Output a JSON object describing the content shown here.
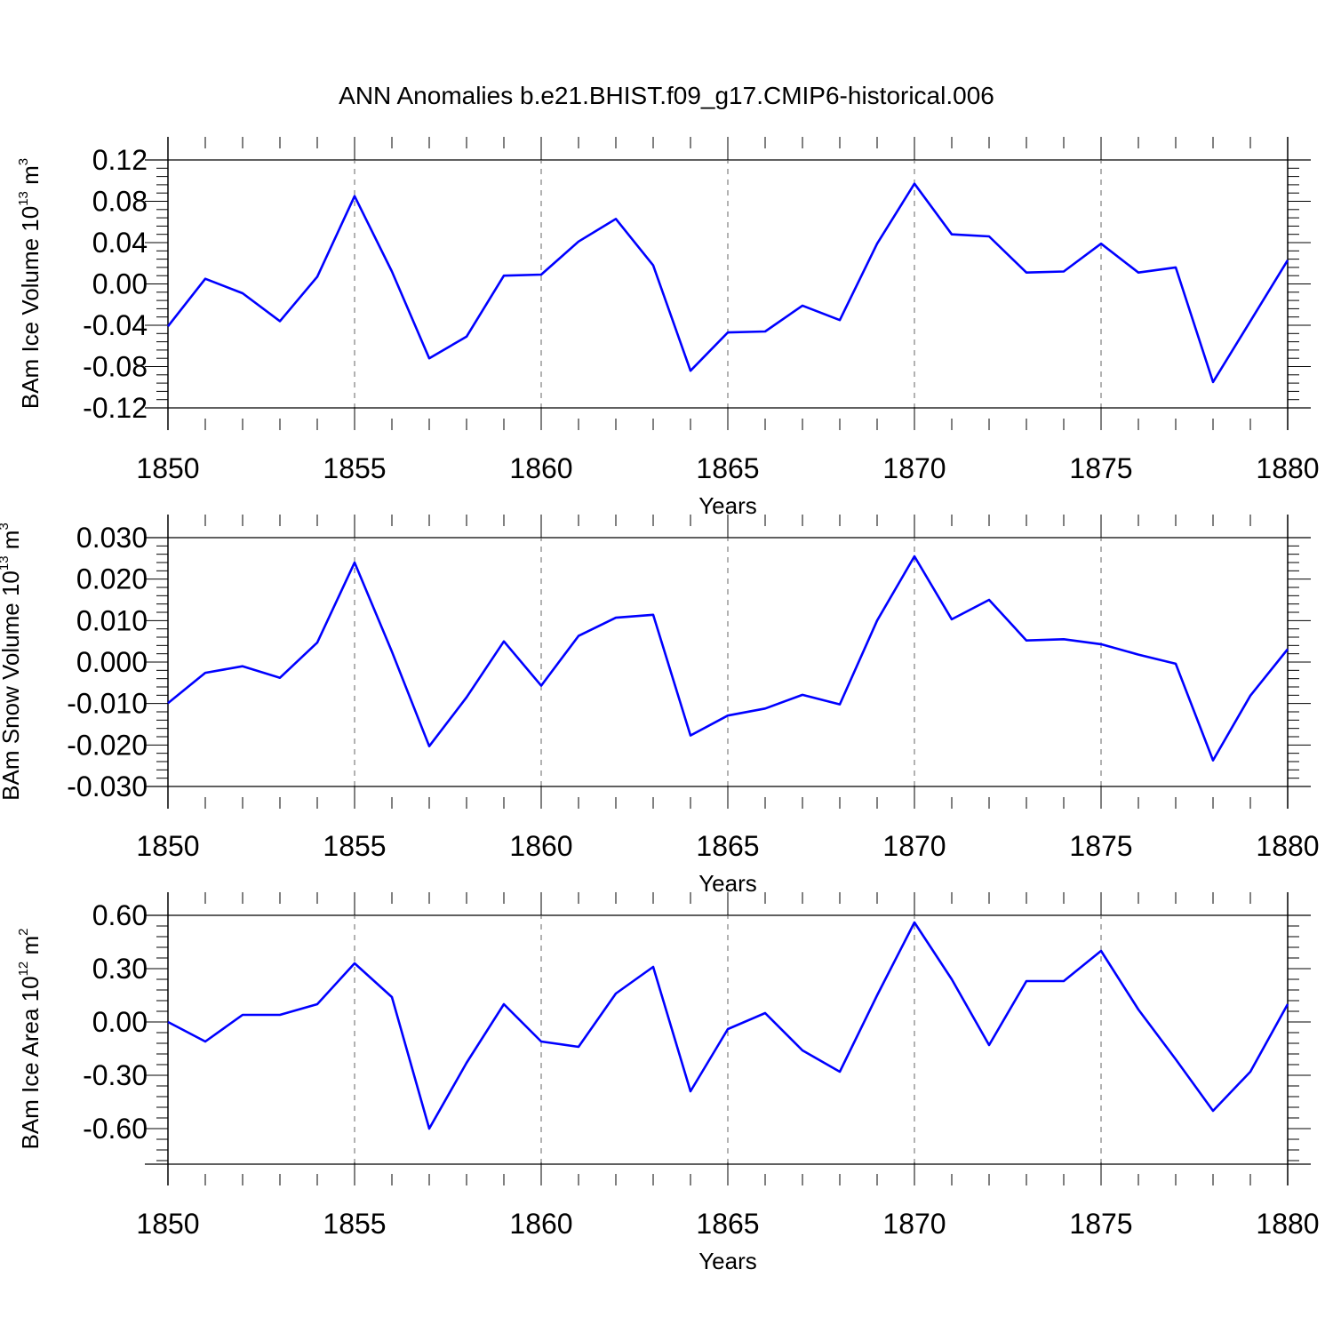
{
  "title": "ANN Anomalies b.e21.BHIST.f09_g17.CMIP6-historical.006",
  "colors": {
    "line": "#0000ff",
    "axis": "#000000",
    "grid": "#000000"
  },
  "chart_data": [
    {
      "type": "line",
      "ylabel_main": "BAm Ice Volume 10",
      "ylabel_exp": "13",
      "ylabel_unit": "m",
      "ylabel_unit_exp": "3",
      "xlabel": "Years",
      "xlim": [
        1850,
        1880
      ],
      "ylim": [
        -0.12,
        0.12
      ],
      "yticks": [
        -0.12,
        -0.08,
        -0.04,
        0.0,
        0.04,
        0.08,
        0.12
      ],
      "ytick_labels": [
        "-0.12",
        "-0.08",
        "-0.04",
        "0.00",
        "0.04",
        "0.08",
        "0.12"
      ],
      "xticks": [
        1850,
        1855,
        1860,
        1865,
        1870,
        1875,
        1880
      ],
      "xtick_labels": [
        "1850",
        "1855",
        "1860",
        "1865",
        "1870",
        "1875",
        "1880"
      ],
      "vertical_grid": true,
      "series": [
        {
          "x": [
            1850,
            1851,
            1852,
            1853,
            1854,
            1855,
            1856,
            1857,
            1858,
            1859,
            1860,
            1861,
            1862,
            1863,
            1864,
            1865,
            1866,
            1867,
            1868,
            1869,
            1870,
            1871,
            1872,
            1873,
            1874,
            1875,
            1876,
            1877,
            1878,
            1879,
            1880
          ],
          "values": [
            -0.041,
            0.005,
            -0.009,
            -0.036,
            0.007,
            0.085,
            0.012,
            -0.072,
            -0.051,
            0.008,
            0.009,
            0.041,
            0.063,
            0.018,
            -0.084,
            -0.047,
            -0.046,
            -0.021,
            -0.035,
            0.039,
            0.097,
            0.048,
            0.046,
            0.011,
            0.012,
            0.039,
            0.011,
            0.016,
            -0.095,
            -0.036,
            0.023
          ]
        }
      ]
    },
    {
      "type": "line",
      "ylabel_main": "BAm Snow Volume 10",
      "ylabel_exp": "13",
      "ylabel_unit": "m",
      "ylabel_unit_exp": "3",
      "xlabel": "Years",
      "xlim": [
        1850,
        1880
      ],
      "ylim": [
        -0.03,
        0.03
      ],
      "yticks": [
        -0.03,
        -0.02,
        -0.01,
        0.0,
        0.01,
        0.02,
        0.03
      ],
      "ytick_labels": [
        "-0.030",
        "-0.020",
        "-0.010",
        "0.000",
        "0.010",
        "0.020",
        "0.030"
      ],
      "xticks": [
        1850,
        1855,
        1860,
        1865,
        1870,
        1875,
        1880
      ],
      "xtick_labels": [
        "1850",
        "1855",
        "1860",
        "1865",
        "1870",
        "1875",
        "1880"
      ],
      "vertical_grid": true,
      "series": [
        {
          "x": [
            1850,
            1851,
            1852,
            1853,
            1854,
            1855,
            1856,
            1857,
            1858,
            1859,
            1860,
            1861,
            1862,
            1863,
            1864,
            1865,
            1866,
            1867,
            1868,
            1869,
            1870,
            1871,
            1872,
            1873,
            1874,
            1875,
            1876,
            1877,
            1878,
            1879,
            1880
          ],
          "values": [
            -0.0099,
            -0.0026,
            -0.001,
            -0.0038,
            0.0047,
            0.024,
            0.0025,
            -0.0203,
            -0.0085,
            0.005,
            -0.0057,
            0.0063,
            0.0107,
            0.0114,
            -0.0177,
            -0.0129,
            -0.0112,
            -0.0079,
            -0.0102,
            0.01,
            0.0255,
            0.0103,
            0.015,
            0.0052,
            0.0055,
            0.0043,
            0.0018,
            -0.0004,
            -0.0237,
            -0.0081,
            0.0031
          ]
        }
      ]
    },
    {
      "type": "line",
      "ylabel_main": "BAm Ice Area 10",
      "ylabel_exp": "12",
      "ylabel_unit": "m",
      "ylabel_unit_exp": "2",
      "xlabel": "Years",
      "xlim": [
        1850,
        1880
      ],
      "ylim": [
        -0.8,
        0.6
      ],
      "yticks": [
        -0.6,
        -0.3,
        0.0,
        0.3,
        0.6
      ],
      "ytick_labels": [
        "-0.60",
        "-0.30",
        "0.00",
        "0.30",
        "0.60"
      ],
      "xticks": [
        1850,
        1855,
        1860,
        1865,
        1870,
        1875,
        1880
      ],
      "xtick_labels": [
        "1850",
        "1855",
        "1860",
        "1865",
        "1870",
        "1875",
        "1880"
      ],
      "vertical_grid": true,
      "series": [
        {
          "x": [
            1850,
            1851,
            1852,
            1853,
            1854,
            1855,
            1856,
            1857,
            1858,
            1859,
            1860,
            1861,
            1862,
            1863,
            1864,
            1865,
            1866,
            1867,
            1868,
            1869,
            1870,
            1871,
            1872,
            1873,
            1874,
            1875,
            1876,
            1877,
            1878,
            1879,
            1880
          ],
          "values": [
            0.0,
            -0.11,
            0.04,
            0.04,
            0.1,
            0.33,
            0.14,
            -0.6,
            -0.23,
            0.1,
            -0.11,
            -0.14,
            0.16,
            0.31,
            -0.39,
            -0.04,
            0.05,
            -0.16,
            -0.28,
            0.15,
            0.56,
            0.24,
            -0.13,
            0.23,
            0.23,
            0.4,
            0.07,
            -0.21,
            -0.5,
            -0.28,
            0.1
          ]
        }
      ]
    }
  ]
}
